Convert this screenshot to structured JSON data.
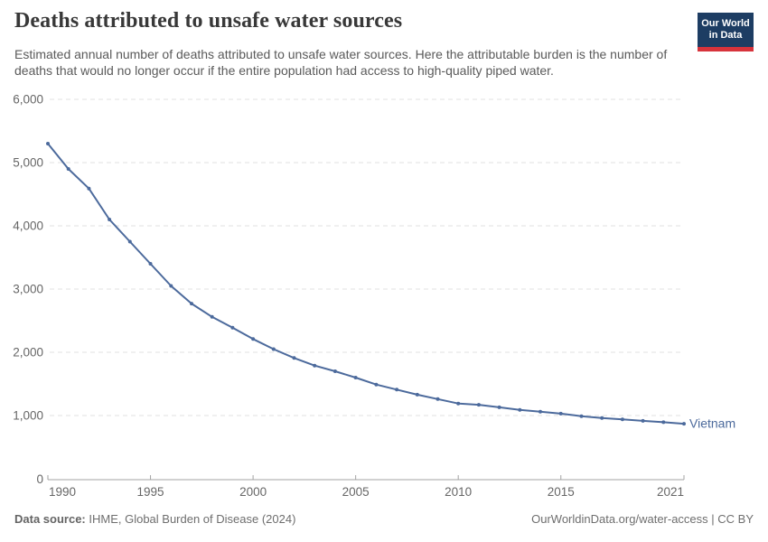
{
  "header": {
    "title": "Deaths attributed to unsafe water sources",
    "subtitle": "Estimated annual number of deaths attributed to unsafe water sources. Here the attributable burden is the number of deaths that would no longer occur if the entire population had access to high-quality piped water.",
    "logo": {
      "line1": "Our World",
      "line2": "in Data",
      "bg_color": "#1d3d63",
      "accent_color": "#d7333b"
    }
  },
  "chart_data": {
    "type": "line",
    "title": "Deaths attributed to unsafe water sources",
    "xlabel": "",
    "ylabel": "",
    "xlim": [
      1990,
      2021
    ],
    "ylim": [
      0,
      6000
    ],
    "grid": "horizontal-dashed",
    "legend_position": "end-of-line",
    "x": [
      1990,
      1991,
      1992,
      1993,
      1994,
      1995,
      1996,
      1997,
      1998,
      1999,
      2000,
      2001,
      2002,
      2003,
      2004,
      2005,
      2006,
      2007,
      2008,
      2009,
      2010,
      2011,
      2012,
      2013,
      2014,
      2015,
      2016,
      2017,
      2018,
      2019,
      2020,
      2021
    ],
    "series": [
      {
        "name": "Vietnam",
        "values": [
          5300,
          4900,
          4590,
          4100,
          3750,
          3400,
          3050,
          2770,
          2560,
          2390,
          2210,
          2050,
          1910,
          1790,
          1700,
          1600,
          1490,
          1410,
          1330,
          1260,
          1190,
          1170,
          1130,
          1090,
          1060,
          1030,
          990,
          960,
          940,
          915,
          895,
          870
        ]
      }
    ],
    "x_ticks": [
      1990,
      1995,
      2000,
      2005,
      2010,
      2015,
      2021
    ],
    "x_tick_labels": [
      "1990",
      "1995",
      "2000",
      "2005",
      "2010",
      "2015",
      "2021"
    ],
    "y_ticks": [
      0,
      1000,
      2000,
      3000,
      4000,
      5000,
      6000
    ],
    "y_tick_labels": [
      "0",
      "1,000",
      "2,000",
      "3,000",
      "4,000",
      "5,000",
      "6,000"
    ],
    "colors": {
      "line": "#4C6A9C",
      "entity_label": "#4C6A9C",
      "gridline": "#e2e2e2",
      "axis": "#a3a3a3",
      "tick_text": "#666666"
    }
  },
  "footer": {
    "source_label": "Data source:",
    "source_text": " IHME, Global Burden of Disease (2024)",
    "credit": "OurWorldinData.org/water-access | CC BY"
  }
}
